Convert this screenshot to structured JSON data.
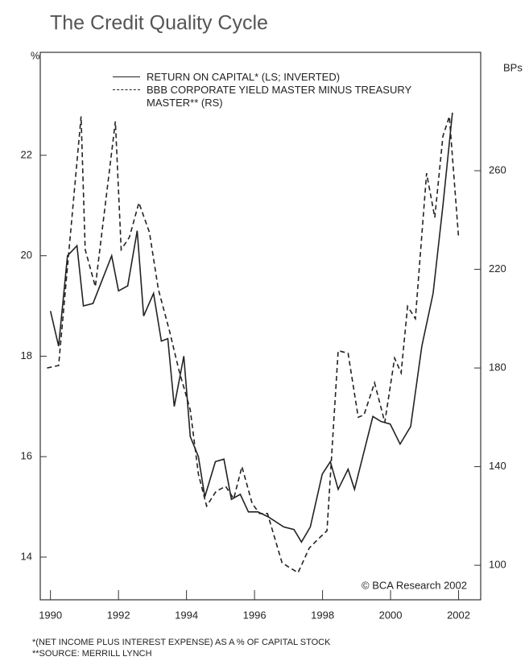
{
  "chart_data": {
    "type": "line",
    "title": "The Credit Quality Cycle",
    "ylabel": "%",
    "y2label": "BPs",
    "annotation": "© BCA Research 2002",
    "footnotes": [
      "*(NET INCOME PLUS INTEREST EXPENSE) AS A % OF CAPITAL STOCK",
      "**SOURCE:  MERRILL LYNCH"
    ],
    "xlim": [
      1989.7,
      2002.65
    ],
    "xticks": [
      1990,
      1992,
      1994,
      1996,
      1998,
      2000,
      2002
    ],
    "ylim": [
      13.15,
      24.05
    ],
    "yticks": [
      14,
      16,
      18,
      20,
      22
    ],
    "y2lim": [
      86,
      308
    ],
    "y2ticks": [
      100,
      140,
      180,
      220,
      260
    ],
    "series": [
      {
        "name": "RETURN ON CAPITAL* (LS; INVERTED)",
        "color": "#222222",
        "dash": false,
        "x": [
          1990.0,
          1990.24,
          1990.5,
          1990.78,
          1990.97,
          1991.25,
          1991.8,
          1992.0,
          1992.27,
          1992.55,
          1992.74,
          1993.03,
          1993.26,
          1993.45,
          1993.64,
          1993.92,
          1994.11,
          1994.35,
          1994.54,
          1994.85,
          1995.1,
          1995.32,
          1995.58,
          1995.82,
          1996.1,
          1996.41,
          1996.86,
          1997.16,
          1997.38,
          1997.64,
          1997.99,
          1998.23,
          1998.46,
          1998.75,
          1998.94,
          1999.48,
          1999.72,
          1999.99,
          2000.28,
          2000.59,
          2000.92,
          2001.25,
          2001.54,
          2001.82
        ],
        "values": [
          18.9,
          18.2,
          20.0,
          20.2,
          19.0,
          19.05,
          20.0,
          19.3,
          19.4,
          20.5,
          18.8,
          19.25,
          18.3,
          18.35,
          17.0,
          18.0,
          16.4,
          16.0,
          15.2,
          15.9,
          15.95,
          15.15,
          15.25,
          14.9,
          14.9,
          14.8,
          14.6,
          14.55,
          14.3,
          14.6,
          15.65,
          15.9,
          15.35,
          15.75,
          15.35,
          16.8,
          16.7,
          16.65,
          16.25,
          16.6,
          18.2,
          19.25,
          21.0,
          22.85
        ]
      },
      {
        "name": "BBB CORPORATE YIELD MASTER MINUS TREASURY MASTER** (RS)",
        "color": "#222222",
        "dash": true,
        "axis": "y2",
        "x": [
          1989.9,
          1990.24,
          1990.5,
          1990.9,
          1991.02,
          1991.32,
          1991.91,
          1992.08,
          1992.32,
          1992.6,
          1992.91,
          1993.17,
          1993.5,
          1993.78,
          1994.11,
          1994.35,
          1994.59,
          1994.87,
          1995.15,
          1995.39,
          1995.63,
          1995.93,
          1996.15,
          1996.38,
          1996.81,
          1997.04,
          1997.28,
          1997.61,
          1997.9,
          1998.13,
          1998.46,
          1998.75,
          1999.05,
          1999.22,
          1999.53,
          1999.83,
          2000.12,
          2000.31,
          2000.5,
          2000.73,
          2001.06,
          2001.3,
          2001.54,
          2001.73,
          2002.0
        ],
        "values": [
          180,
          181,
          221,
          282,
          228,
          213,
          280,
          228,
          233,
          247,
          235,
          212,
          195,
          179,
          163,
          137,
          124,
          130,
          132,
          127,
          140,
          125,
          121,
          121,
          101,
          99,
          97,
          107,
          111,
          114,
          187,
          186,
          160,
          161,
          174,
          158,
          184,
          178,
          205,
          200,
          259,
          241,
          274,
          282,
          233
        ]
      }
    ]
  }
}
